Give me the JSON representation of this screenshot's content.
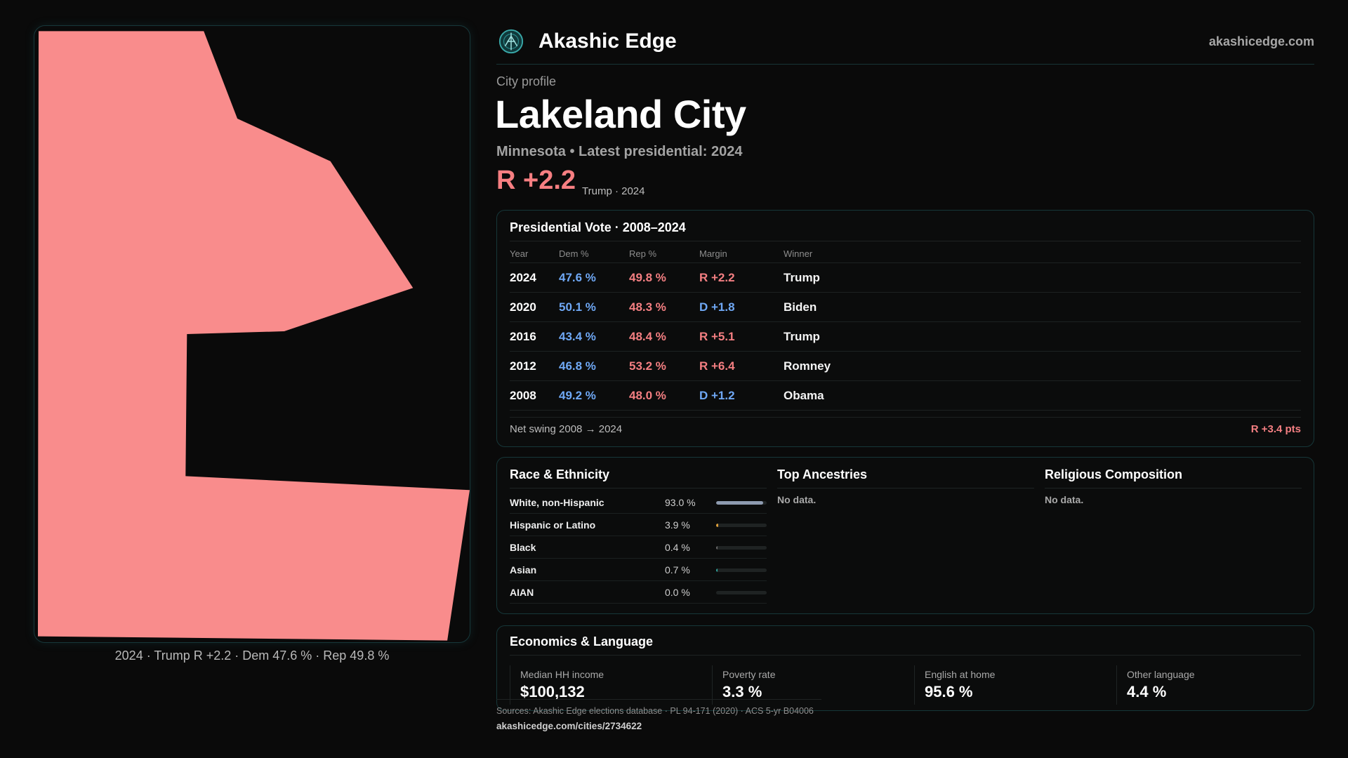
{
  "brand": {
    "name": "Akashic Edge",
    "site": "akashicedge.com",
    "logo_icon": "akashic-edge-logo-icon"
  },
  "profile": {
    "eyebrow": "City profile",
    "city": "Lakeland City",
    "subtitle": "Minnesota • Latest presidential: 2024",
    "margin": "R +2.2",
    "margin_note": "Trump · 2024"
  },
  "map": {
    "fill_color": "#f98c8c",
    "caption": "2024 · Trump R +2.2 · Dem 47.6 % · Rep 49.8 %"
  },
  "vote": {
    "title": "Presidential Vote · 2008–2024",
    "columns": [
      "Year",
      "Dem %",
      "Rep %",
      "Margin",
      "Winner"
    ],
    "rows": [
      {
        "year": "2024",
        "dem": "47.6 %",
        "rep": "49.8 %",
        "margin": "R +2.2",
        "margin_party": "rep",
        "winner": "Trump"
      },
      {
        "year": "2020",
        "dem": "50.1 %",
        "rep": "48.3 %",
        "margin": "D +1.8",
        "margin_party": "dem",
        "winner": "Biden"
      },
      {
        "year": "2016",
        "dem": "43.4 %",
        "rep": "48.4 %",
        "margin": "R +5.1",
        "margin_party": "rep",
        "winner": "Trump"
      },
      {
        "year": "2012",
        "dem": "46.8 %",
        "rep": "53.2 %",
        "margin": "R +6.4",
        "margin_party": "rep",
        "winner": "Romney"
      },
      {
        "year": "2008",
        "dem": "49.2 %",
        "rep": "48.0 %",
        "margin": "D +1.2",
        "margin_party": "dem",
        "winner": "Obama"
      }
    ],
    "swing_label": "Net swing 2008 → 2024",
    "swing_value": "R +3.4 pts"
  },
  "colors": {
    "dem": "#6fa8f5",
    "rep": "#f47f82",
    "accent": "#1e6e73"
  },
  "race": {
    "title": "Race & Ethnicity",
    "rows": [
      {
        "label": "White, non-Hispanic",
        "pct": "93.0 %",
        "value": 0.93,
        "color": "#8e9bb0"
      },
      {
        "label": "Hispanic or Latino",
        "pct": "3.9 %",
        "value": 0.039,
        "color": "#e0a13a"
      },
      {
        "label": "Black",
        "pct": "0.4 %",
        "value": 0.004,
        "color": "#6a6a6a"
      },
      {
        "label": "Asian",
        "pct": "0.7 %",
        "value": 0.007,
        "color": "#2fa39a"
      },
      {
        "label": "AIAN",
        "pct": "0.0 %",
        "value": 0.0,
        "color": "#6a6a6a"
      }
    ]
  },
  "ancestries": {
    "title": "Top Ancestries",
    "empty": "No data."
  },
  "religion": {
    "title": "Religious Composition",
    "empty": "No data."
  },
  "economics": {
    "title": "Economics & Language",
    "stats": [
      {
        "label": "Median HH income",
        "value": "$100,132"
      },
      {
        "label": "Poverty rate",
        "value": "3.3 %"
      },
      {
        "label": "English at home",
        "value": "95.6 %"
      },
      {
        "label": "Other language",
        "value": "4.4 %"
      }
    ]
  },
  "footer": {
    "sources": "Sources: Akashic Edge elections database · PL 94-171 (2020) · ACS 5-yr B04006",
    "link": "akashicedge.com/cities/2734622"
  }
}
